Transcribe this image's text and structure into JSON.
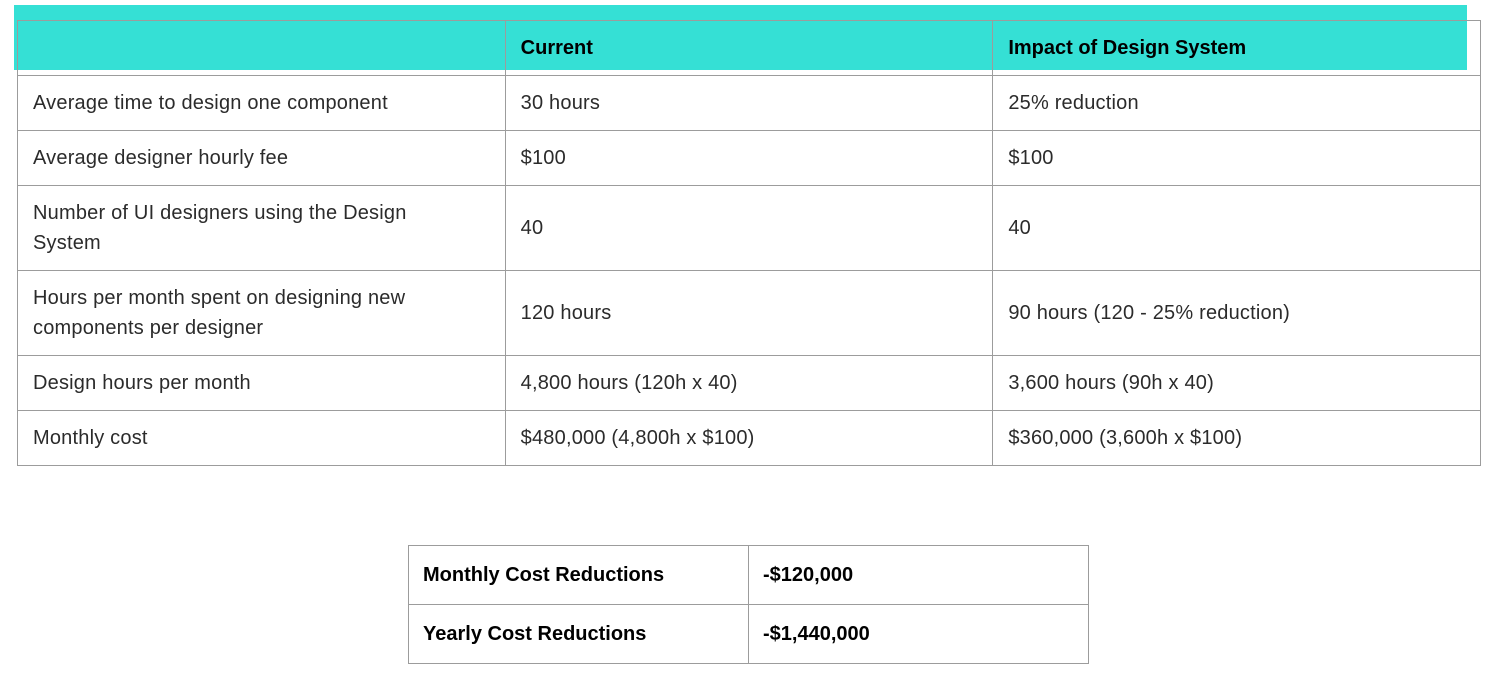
{
  "colors": {
    "highlight": "#35e0d5",
    "border": "#9c9c9c",
    "text": "#2b2b2b",
    "header_text": "#000000"
  },
  "main_table": {
    "headers": [
      "",
      "Current",
      "Impact of Design System"
    ],
    "rows": [
      {
        "label": "Average time to design one component",
        "current": "30 hours",
        "impact": "25% reduction"
      },
      {
        "label": "Average designer hourly fee",
        "current": "$100",
        "impact": "$100"
      },
      {
        "label": "Number of UI designers using the Design\nSystem",
        "current": "40",
        "impact": "40"
      },
      {
        "label": "Hours per month spent on designing new\ncomponents per designer",
        "current": "120 hours",
        "impact": "90 hours (120 - 25% reduction)"
      },
      {
        "label": "Design hours per month",
        "current": "4,800 hours (120h x 40)",
        "impact": "3,600 hours (90h x 40)"
      },
      {
        "label": "Monthly cost",
        "current": "$480,000 (4,800h x $100)",
        "impact": "$360,000 (3,600h x $100)"
      }
    ]
  },
  "summary_table": {
    "rows": [
      {
        "label": "Monthly Cost Reductions",
        "value": "-$120,000"
      },
      {
        "label": "Yearly Cost Reductions",
        "value": "-$1,440,000"
      }
    ]
  }
}
